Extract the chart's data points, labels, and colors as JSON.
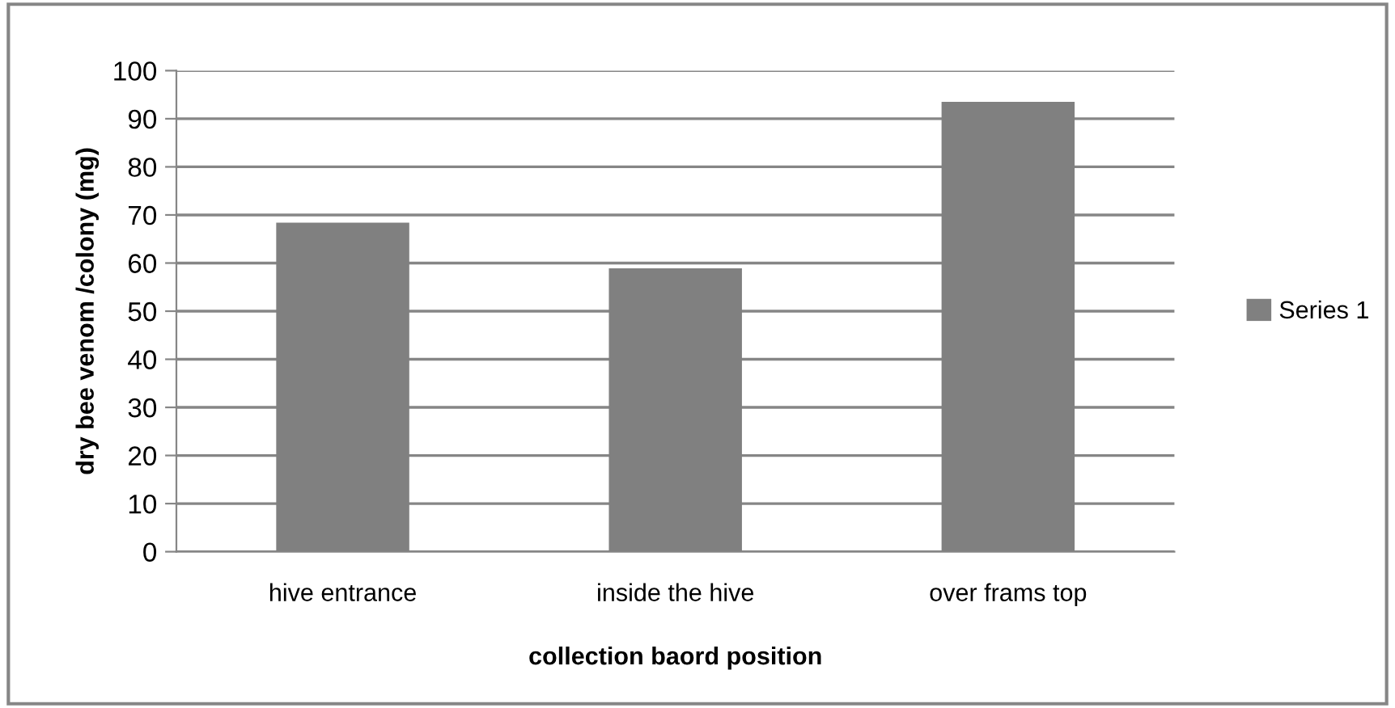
{
  "chart_data": {
    "type": "bar",
    "xlabel": "collection baord position",
    "ylabel": "dry bee venom /colony (mg)",
    "categories": [
      "hive entrance",
      "inside the hive",
      "over frams top"
    ],
    "series": [
      {
        "name": "Series 1",
        "color": "#808080",
        "values": [
          68.4,
          58.9,
          93.5
        ]
      }
    ],
    "ylim": [
      0,
      100
    ],
    "yticks": [
      0,
      10,
      20,
      30,
      40,
      50,
      60,
      70,
      80,
      90,
      100
    ],
    "grid": "y",
    "legend": "right"
  }
}
